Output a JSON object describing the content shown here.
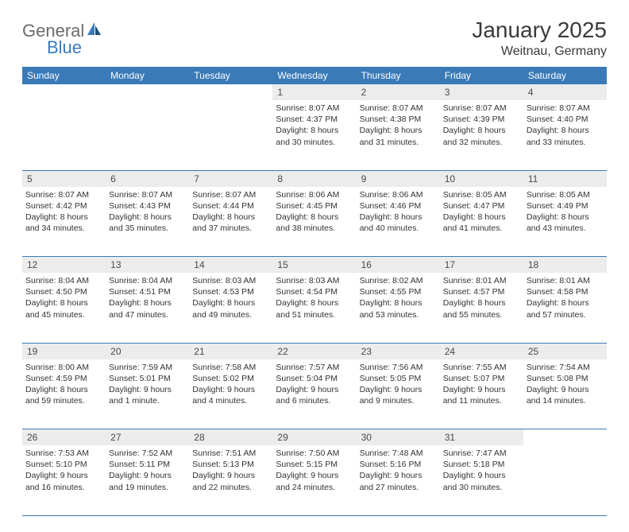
{
  "logo": {
    "general": "General",
    "blue": "Blue"
  },
  "title": "January 2025",
  "location": "Weitnau, Germany",
  "colors": {
    "header_bg": "#3a7ab8",
    "header_fg": "#ffffff",
    "daynum_bg": "#ececec",
    "text": "#333333",
    "border": "#3a7ab8"
  },
  "weekdays": [
    "Sunday",
    "Monday",
    "Tuesday",
    "Wednesday",
    "Thursday",
    "Friday",
    "Saturday"
  ],
  "weeks": [
    [
      null,
      null,
      null,
      {
        "n": "1",
        "sunrise": "8:07 AM",
        "sunset": "4:37 PM",
        "daylight": "8 hours and 30 minutes."
      },
      {
        "n": "2",
        "sunrise": "8:07 AM",
        "sunset": "4:38 PM",
        "daylight": "8 hours and 31 minutes."
      },
      {
        "n": "3",
        "sunrise": "8:07 AM",
        "sunset": "4:39 PM",
        "daylight": "8 hours and 32 minutes."
      },
      {
        "n": "4",
        "sunrise": "8:07 AM",
        "sunset": "4:40 PM",
        "daylight": "8 hours and 33 minutes."
      }
    ],
    [
      {
        "n": "5",
        "sunrise": "8:07 AM",
        "sunset": "4:42 PM",
        "daylight": "8 hours and 34 minutes."
      },
      {
        "n": "6",
        "sunrise": "8:07 AM",
        "sunset": "4:43 PM",
        "daylight": "8 hours and 35 minutes."
      },
      {
        "n": "7",
        "sunrise": "8:07 AM",
        "sunset": "4:44 PM",
        "daylight": "8 hours and 37 minutes."
      },
      {
        "n": "8",
        "sunrise": "8:06 AM",
        "sunset": "4:45 PM",
        "daylight": "8 hours and 38 minutes."
      },
      {
        "n": "9",
        "sunrise": "8:06 AM",
        "sunset": "4:46 PM",
        "daylight": "8 hours and 40 minutes."
      },
      {
        "n": "10",
        "sunrise": "8:05 AM",
        "sunset": "4:47 PM",
        "daylight": "8 hours and 41 minutes."
      },
      {
        "n": "11",
        "sunrise": "8:05 AM",
        "sunset": "4:49 PM",
        "daylight": "8 hours and 43 minutes."
      }
    ],
    [
      {
        "n": "12",
        "sunrise": "8:04 AM",
        "sunset": "4:50 PM",
        "daylight": "8 hours and 45 minutes."
      },
      {
        "n": "13",
        "sunrise": "8:04 AM",
        "sunset": "4:51 PM",
        "daylight": "8 hours and 47 minutes."
      },
      {
        "n": "14",
        "sunrise": "8:03 AM",
        "sunset": "4:53 PM",
        "daylight": "8 hours and 49 minutes."
      },
      {
        "n": "15",
        "sunrise": "8:03 AM",
        "sunset": "4:54 PM",
        "daylight": "8 hours and 51 minutes."
      },
      {
        "n": "16",
        "sunrise": "8:02 AM",
        "sunset": "4:55 PM",
        "daylight": "8 hours and 53 minutes."
      },
      {
        "n": "17",
        "sunrise": "8:01 AM",
        "sunset": "4:57 PM",
        "daylight": "8 hours and 55 minutes."
      },
      {
        "n": "18",
        "sunrise": "8:01 AM",
        "sunset": "4:58 PM",
        "daylight": "8 hours and 57 minutes."
      }
    ],
    [
      {
        "n": "19",
        "sunrise": "8:00 AM",
        "sunset": "4:59 PM",
        "daylight": "8 hours and 59 minutes."
      },
      {
        "n": "20",
        "sunrise": "7:59 AM",
        "sunset": "5:01 PM",
        "daylight": "9 hours and 1 minute."
      },
      {
        "n": "21",
        "sunrise": "7:58 AM",
        "sunset": "5:02 PM",
        "daylight": "9 hours and 4 minutes."
      },
      {
        "n": "22",
        "sunrise": "7:57 AM",
        "sunset": "5:04 PM",
        "daylight": "9 hours and 6 minutes."
      },
      {
        "n": "23",
        "sunrise": "7:56 AM",
        "sunset": "5:05 PM",
        "daylight": "9 hours and 9 minutes."
      },
      {
        "n": "24",
        "sunrise": "7:55 AM",
        "sunset": "5:07 PM",
        "daylight": "9 hours and 11 minutes."
      },
      {
        "n": "25",
        "sunrise": "7:54 AM",
        "sunset": "5:08 PM",
        "daylight": "9 hours and 14 minutes."
      }
    ],
    [
      {
        "n": "26",
        "sunrise": "7:53 AM",
        "sunset": "5:10 PM",
        "daylight": "9 hours and 16 minutes."
      },
      {
        "n": "27",
        "sunrise": "7:52 AM",
        "sunset": "5:11 PM",
        "daylight": "9 hours and 19 minutes."
      },
      {
        "n": "28",
        "sunrise": "7:51 AM",
        "sunset": "5:13 PM",
        "daylight": "9 hours and 22 minutes."
      },
      {
        "n": "29",
        "sunrise": "7:50 AM",
        "sunset": "5:15 PM",
        "daylight": "9 hours and 24 minutes."
      },
      {
        "n": "30",
        "sunrise": "7:48 AM",
        "sunset": "5:16 PM",
        "daylight": "9 hours and 27 minutes."
      },
      {
        "n": "31",
        "sunrise": "7:47 AM",
        "sunset": "5:18 PM",
        "daylight": "9 hours and 30 minutes."
      },
      null
    ]
  ],
  "labels": {
    "sunrise": "Sunrise:",
    "sunset": "Sunset:",
    "daylight": "Daylight:"
  }
}
